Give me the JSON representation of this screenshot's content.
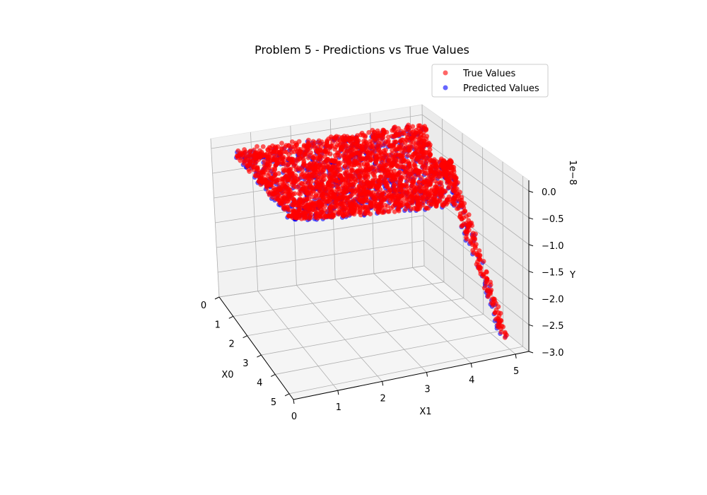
{
  "chart_data": {
    "type": "scatter",
    "title": "Problem 5 - Predictions vs True Values",
    "xlabel": "X0",
    "ylabel": "X1",
    "zlabel": "Y",
    "z_offset_label": "1e−8",
    "x_ticks": [
      "0",
      "1",
      "2",
      "3",
      "4",
      "5"
    ],
    "y_ticks": [
      "0",
      "1",
      "2",
      "3",
      "4",
      "5"
    ],
    "z_ticks": [
      "0.0",
      "−0.5",
      "−1.0",
      "−1.5",
      "−2.0",
      "−2.5",
      "−3.0"
    ],
    "xlim": [
      0,
      5.3
    ],
    "ylim": [
      0,
      5.3
    ],
    "zlim": [
      -3.0,
      0.2
    ],
    "legend_placement": "top-right",
    "series": [
      {
        "name": "True Values",
        "color": "#ff0000"
      },
      {
        "name": "Predicted Values",
        "color": "#0000ff"
      }
    ],
    "grid": true
  }
}
